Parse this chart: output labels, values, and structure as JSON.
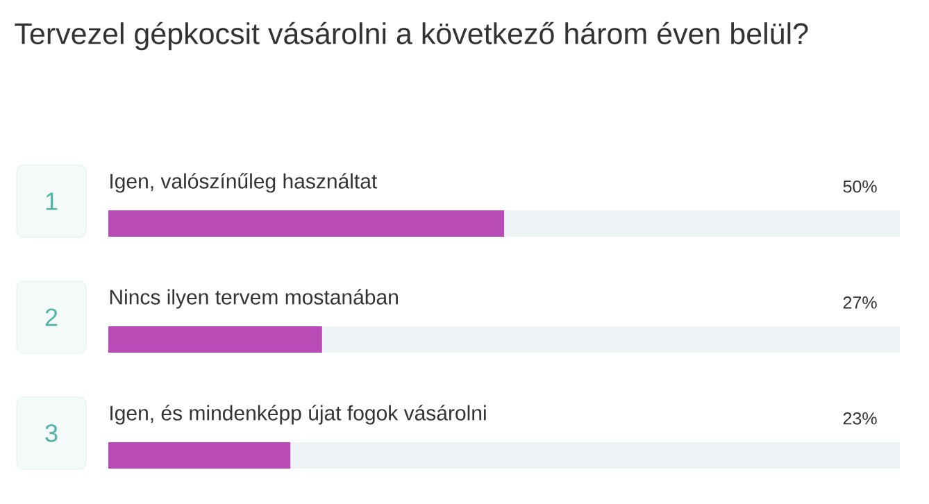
{
  "chart_data": {
    "type": "bar",
    "orientation": "horizontal",
    "title": "Tervezel gépkocsit vásárolni a következő három éven belül?",
    "categories": [
      "Igen, valószínűleg használtat",
      "Nincs ilyen tervem mostanában",
      "Igen, és mindenképp újat fogok vásárolni"
    ],
    "values": [
      50,
      27,
      23
    ],
    "value_labels": [
      "50%",
      "27%",
      "23%"
    ],
    "color": "#b94cb6",
    "annotations": [
      "1",
      "2",
      "3"
    ],
    "xlim": [
      0,
      100
    ]
  }
}
